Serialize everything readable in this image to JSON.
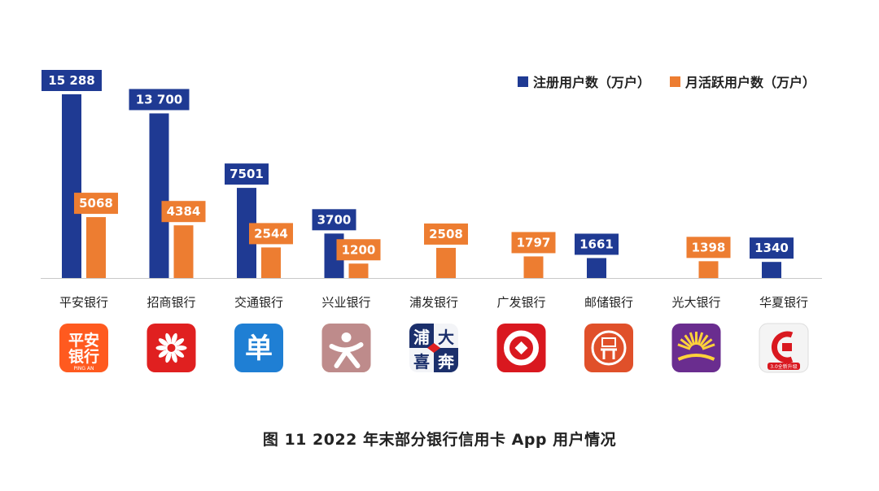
{
  "caption": "图 11  2022 年末部分银行信用卡 App 用户情况",
  "colors": {
    "registered": "#1f3a93",
    "active": "#ed7d31",
    "axis": "#c8c8c8"
  },
  "chart_data": {
    "type": "bar",
    "categories": [
      "平安银行",
      "招商银行",
      "交通银行",
      "兴业银行",
      "浦发银行",
      "广发银行",
      "邮储银行",
      "光大银行",
      "华夏银行"
    ],
    "series": [
      {
        "name": "注册用户数（万户）",
        "values": [
          15288,
          13700,
          7501,
          3700,
          null,
          null,
          1661,
          null,
          1340
        ],
        "labels": [
          "15 288",
          "13 700",
          "7501",
          "3700",
          "",
          "",
          "1661",
          "",
          "1340"
        ]
      },
      {
        "name": "月活跃用户数（万户）",
        "values": [
          5068,
          4384,
          2544,
          1200,
          2508,
          1797,
          null,
          1398,
          null
        ],
        "labels": [
          "5068",
          "4384",
          "2544",
          "1200",
          "2508",
          "1797",
          "",
          "1398",
          ""
        ]
      }
    ],
    "legend_position": "top-right",
    "ylim": [
      0,
      15288
    ]
  },
  "logos": [
    {
      "icon": "pingan-bank-logo",
      "text": "平安银行",
      "subtext": "PING AN"
    },
    {
      "icon": "cmb-bank-logo",
      "text": ""
    },
    {
      "icon": "bocom-bank-logo",
      "text": "单"
    },
    {
      "icon": "cib-bank-logo",
      "text": ""
    },
    {
      "icon": "spdb-bank-logo",
      "text": "浦大喜奔"
    },
    {
      "icon": "cgb-bank-logo",
      "text": ""
    },
    {
      "icon": "psbc-bank-logo",
      "text": ""
    },
    {
      "icon": "ceb-bank-logo",
      "text": ""
    },
    {
      "icon": "hxb-bank-logo",
      "text": "",
      "subtext": "3.0全新升级"
    }
  ]
}
